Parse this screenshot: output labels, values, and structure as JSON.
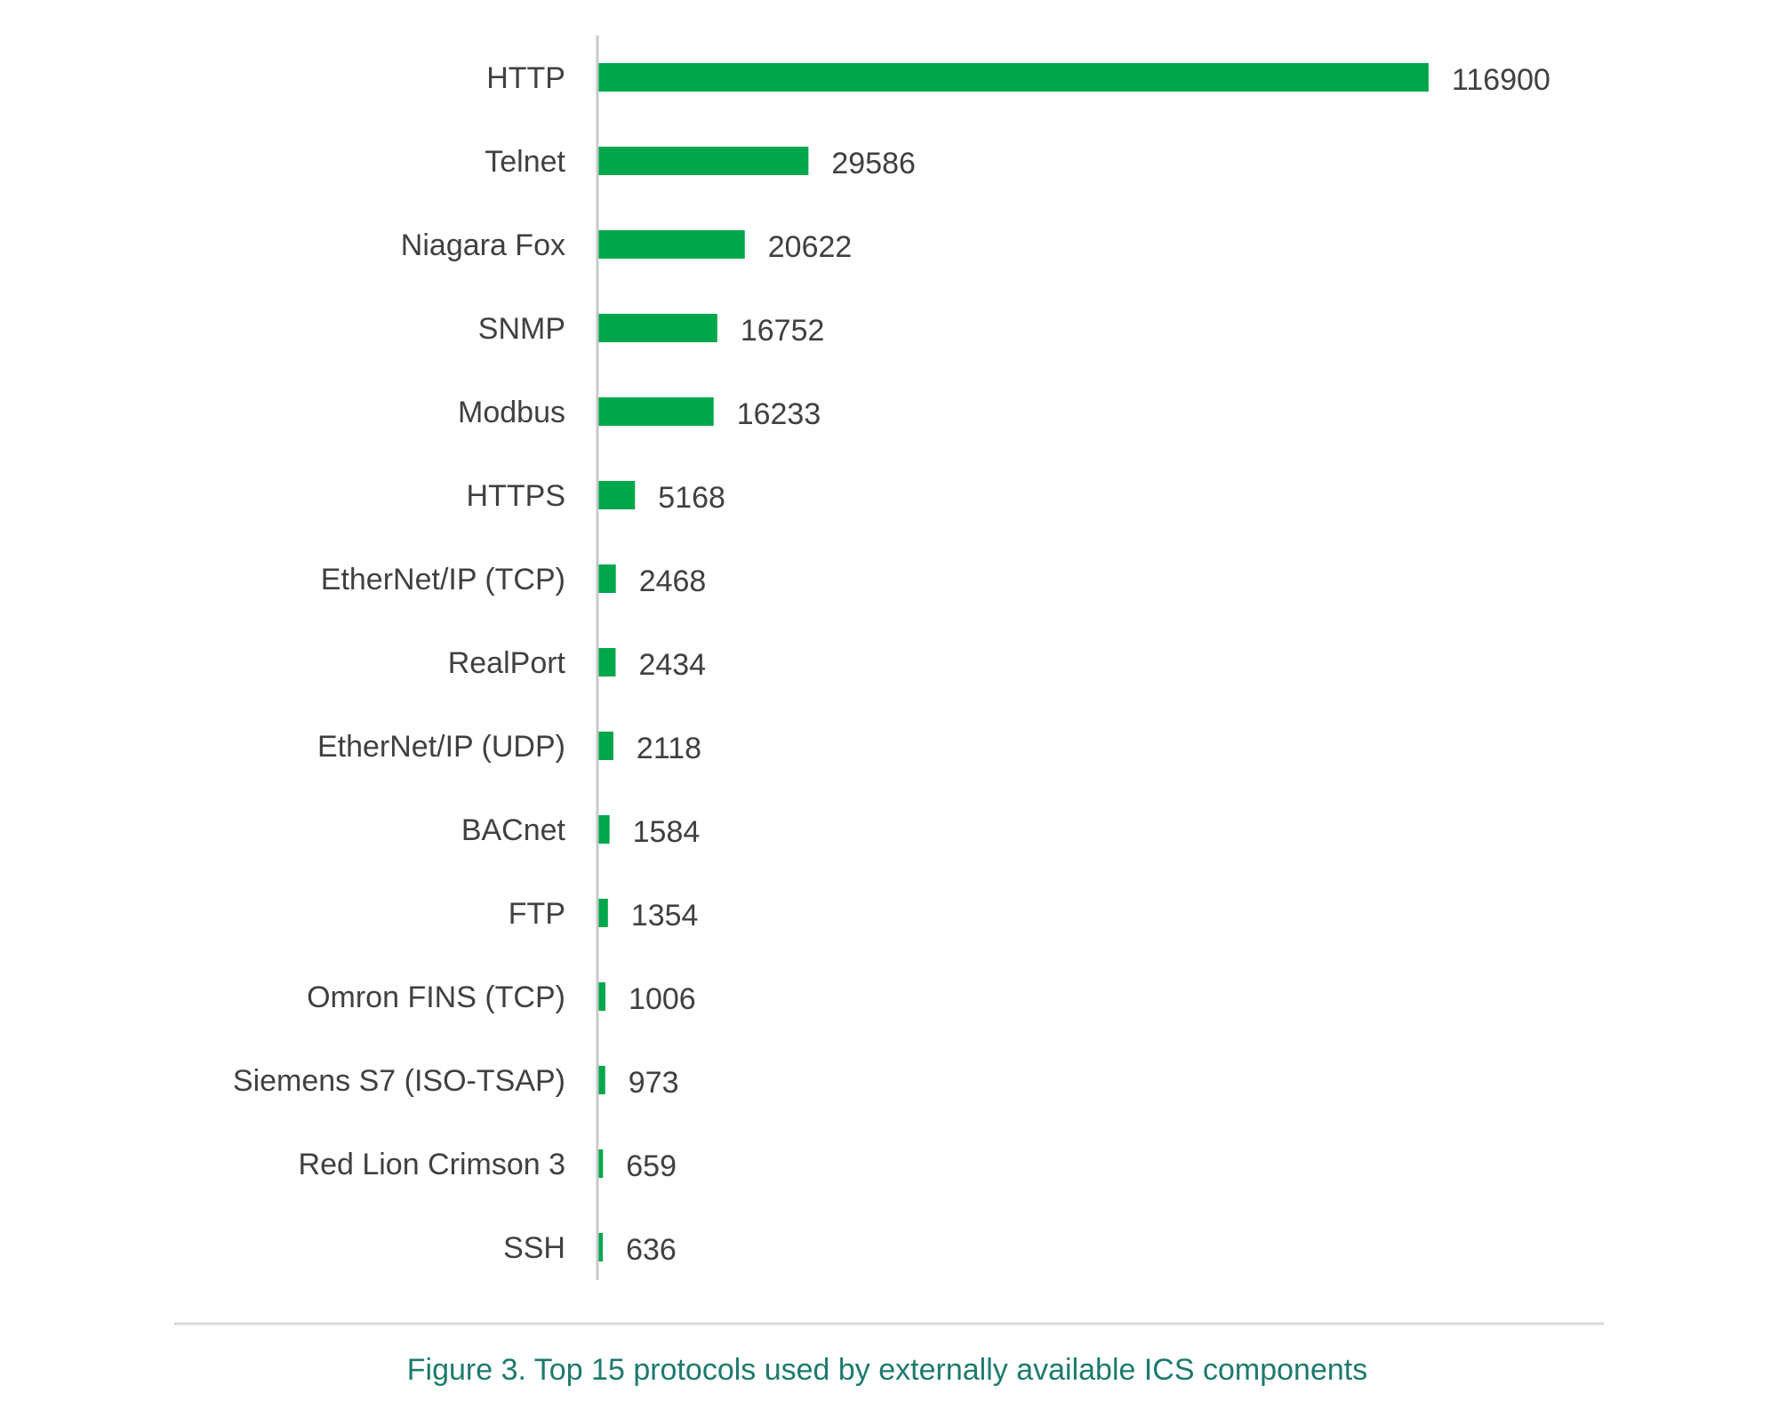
{
  "chart_data": {
    "type": "bar",
    "orientation": "horizontal",
    "title": "",
    "xlabel": "",
    "ylabel": "",
    "categories": [
      "HTTP",
      "Telnet",
      "Niagara Fox",
      "SNMP",
      "Modbus",
      "HTTPS",
      "EtherNet/IP (TCP)",
      "RealPort",
      "EtherNet/IP (UDP)",
      "BACnet",
      "FTP",
      "Omron FINS (TCP)",
      "Siemens S7 (ISO-TSAP)",
      "Red Lion Crimson 3",
      "SSH"
    ],
    "values": [
      116900,
      29586,
      20622,
      16752,
      16233,
      5168,
      2468,
      2434,
      2118,
      1584,
      1354,
      1006,
      973,
      659,
      636
    ],
    "value_labels": [
      "116900",
      "29586",
      "20622",
      "16752",
      "16233",
      "5168",
      "2468",
      "2434",
      "2118",
      "1584",
      "1354",
      "1006",
      "973",
      "659",
      "636"
    ],
    "xlim": [
      0,
      116900
    ],
    "grid": false,
    "legend": "none",
    "bar_color": "#00a74a",
    "axis_color": "#c8c8c8"
  },
  "caption": "Figure 3. Top 15 protocols used by externally available ICS components",
  "caption_color": "#1d7a6c"
}
